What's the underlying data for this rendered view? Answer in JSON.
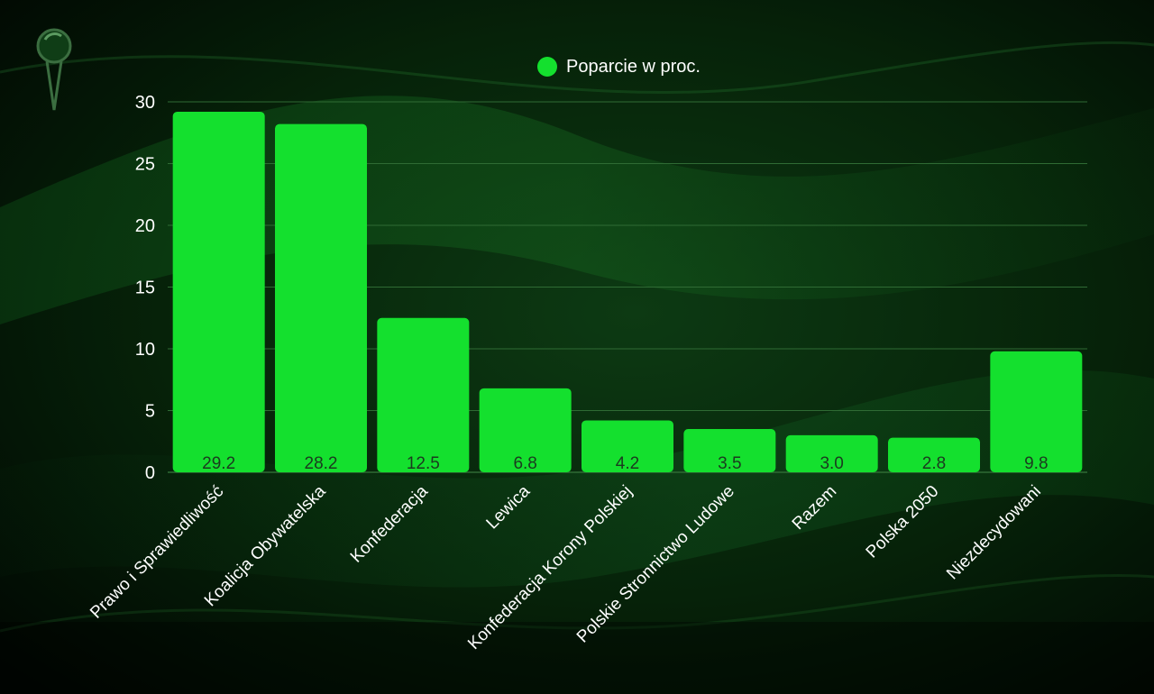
{
  "legend": {
    "label": "Poparcie w proc.",
    "position": "top-center"
  },
  "colors": {
    "bar": "#14e02e",
    "background": "#031005",
    "text": "#ffffff",
    "grid": "#2f6b34"
  },
  "chart_data": {
    "type": "bar",
    "categories": [
      "Prawo i Sprawiedliwość",
      "Koalicja Obywatelska",
      "Konfederacja",
      "Lewica",
      "Konfederacja Korony Polskiej",
      "Polskie Stronnictwo Ludowe",
      "Razem",
      "Polska 2050",
      "Niezdecydowani"
    ],
    "series": [
      {
        "name": "Poparcie w proc.",
        "values": [
          29.2,
          28.2,
          12.5,
          6.8,
          4.2,
          3.5,
          3.0,
          2.8,
          9.8
        ]
      }
    ],
    "value_labels": [
      "29.2",
      "28.2",
      "12.5",
      "6.8",
      "4.2",
      "3.5",
      "3.0",
      "2.8",
      "9.8"
    ],
    "ylim": [
      0,
      30
    ],
    "yticks": [
      0,
      5,
      10,
      15,
      20,
      25,
      30
    ],
    "grid": true,
    "xlabel": "",
    "ylabel": ""
  }
}
